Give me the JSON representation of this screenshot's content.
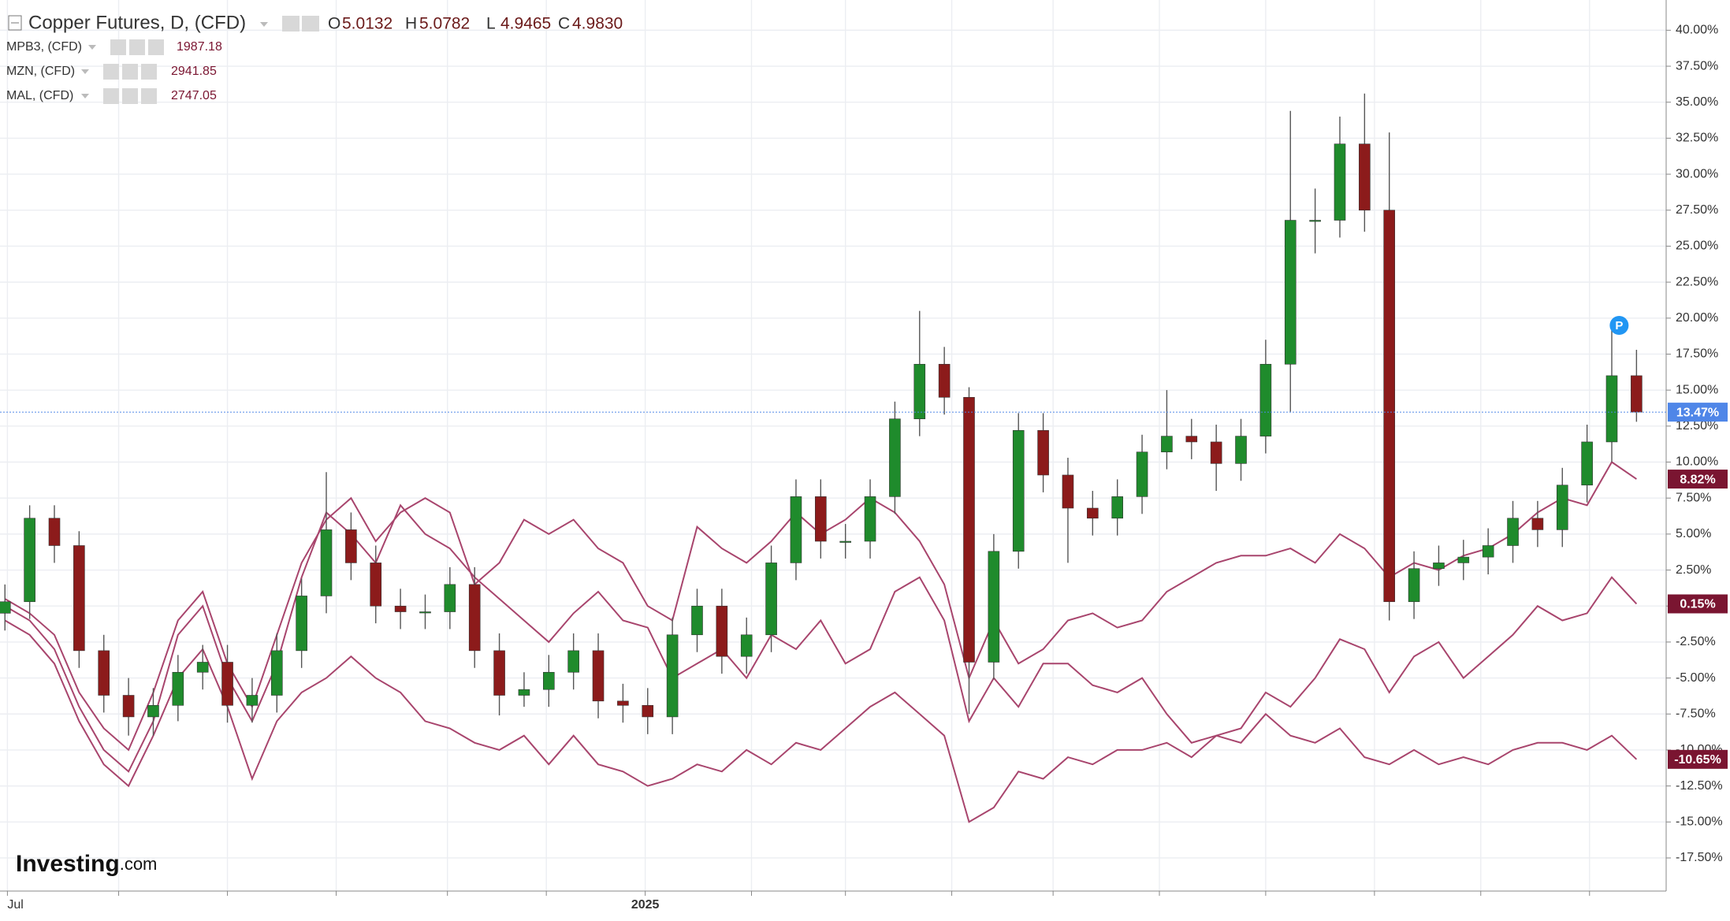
{
  "chart_data": {
    "type": "candlestick",
    "title": "Copper Futures, D, (CFD)",
    "header_values": [
      {
        "label": "O",
        "value": "5.0132"
      },
      {
        "label": "H",
        "value": "5.0782"
      },
      {
        "label": "L",
        "value": "4.9465"
      },
      {
        "label": "C",
        "value": "4.9830"
      }
    ],
    "x": [
      0,
      1,
      2,
      3,
      4,
      5,
      6,
      7,
      8,
      9,
      10,
      11,
      12,
      13,
      14,
      15,
      16,
      17,
      18,
      19,
      20,
      21,
      22,
      23,
      24,
      25,
      26,
      27,
      28,
      29,
      30,
      31,
      32,
      33,
      34,
      35,
      36,
      37,
      38,
      39,
      40,
      41,
      42,
      43,
      44,
      45,
      46,
      47,
      48,
      49,
      50,
      51,
      52,
      53,
      54,
      55,
      56,
      57,
      58,
      59,
      60,
      61,
      62,
      63,
      64,
      65,
      66
    ],
    "xlim": [
      -0.2,
      67.2
    ],
    "xticks": [
      {
        "value": 0.1,
        "label": "Jul"
      },
      {
        "value": 25.9,
        "label": "2025"
      }
    ],
    "xgrid": [
      0.1,
      4.6,
      9.0,
      13.4,
      17.9,
      21.9,
      25.9,
      30.2,
      34.0,
      38.3,
      42.4,
      46.7,
      51.0,
      55.4,
      59.7,
      64.1
    ],
    "ylim": [
      -19.8,
      42.1
    ],
    "yticks": [
      {
        "value": 40,
        "label": "40.00%"
      },
      {
        "value": 37.5,
        "label": "37.50%"
      },
      {
        "value": 35,
        "label": "35.00%"
      },
      {
        "value": 32.5,
        "label": "32.50%"
      },
      {
        "value": 30,
        "label": "30.00%"
      },
      {
        "value": 27.5,
        "label": "27.50%"
      },
      {
        "value": 25,
        "label": "25.00%"
      },
      {
        "value": 22.5,
        "label": "22.50%"
      },
      {
        "value": 20,
        "label": "20.00%"
      },
      {
        "value": 17.5,
        "label": "17.50%"
      },
      {
        "value": 15,
        "label": "15.00%"
      },
      {
        "value": 12.5,
        "label": "12.50%"
      },
      {
        "value": 10,
        "label": "10.00%"
      },
      {
        "value": 7.5,
        "label": "7.50%"
      },
      {
        "value": 5,
        "label": "5.00%"
      },
      {
        "value": 2.5,
        "label": "2.50%"
      },
      {
        "value": 0,
        "label": "0.00%"
      },
      {
        "value": -2.5,
        "label": "-2.50%"
      },
      {
        "value": -5,
        "label": "-5.00%"
      },
      {
        "value": -7.5,
        "label": "-7.50%"
      },
      {
        "value": -10,
        "label": "-10.00%"
      },
      {
        "value": -12.5,
        "label": "-12.50%"
      },
      {
        "value": -15,
        "label": "-15.00%"
      },
      {
        "value": -17.5,
        "label": "-17.50%"
      }
    ],
    "grid": true,
    "ohlc": {
      "up_color": "#1f8b2c",
      "down_color": "#8c1b1b",
      "last_value": 13.47,
      "last_label": "13.47%",
      "last_color": "#4f86e8",
      "open": [
        -0.5,
        0.3,
        6.1,
        4.2,
        -3.1,
        -6.2,
        -7.7,
        -6.9,
        -4.6,
        -3.9,
        -6.9,
        -6.2,
        -3.1,
        0.7,
        5.3,
        3.0,
        0,
        -0.4,
        -0.4,
        1.5,
        -3.1,
        -6.2,
        -5.8,
        -4.6,
        -3.1,
        -6.6,
        -6.9,
        -7.7,
        -2.0,
        0,
        -3.5,
        -2.0,
        3.0,
        7.6,
        4.5,
        4.5,
        7.6,
        13.0,
        16.8,
        14.5,
        -3.9,
        3.8,
        12.2,
        9.1,
        6.8,
        6.1,
        7.6,
        10.7,
        11.8,
        11.4,
        9.9,
        11.8,
        16.8,
        26.8,
        26.8,
        32.1,
        27.5,
        0.3,
        2.6,
        3.0,
        3.4,
        4.2,
        6.1,
        5.3,
        8.4,
        11.4,
        16.0
      ],
      "high": [
        1.5,
        7.0,
        7.0,
        5.2,
        -2,
        -5,
        -5.7,
        -3.4,
        -2.7,
        -2.7,
        -5,
        -1.9,
        1.9,
        9.3,
        6.5,
        4.2,
        1.2,
        0.8,
        2.7,
        2.7,
        -1.9,
        -4.6,
        -3.4,
        -1.9,
        -1.9,
        -5.4,
        -5.7,
        -0.8,
        1.2,
        1.2,
        -0.8,
        4.2,
        8.8,
        8.8,
        5.7,
        8.8,
        14.2,
        20.5,
        18.0,
        15.2,
        5.0,
        13.4,
        13.4,
        10.3,
        8.0,
        8.8,
        11.9,
        15.0,
        13.0,
        12.6,
        13.0,
        18.5,
        34.4,
        29,
        34,
        35.6,
        32.9,
        3.8,
        4.2,
        4.6,
        5.4,
        7.3,
        7.3,
        9.6,
        12.6,
        19.8,
        17.8
      ],
      "low": [
        -1.7,
        -0.9,
        3.0,
        -4.3,
        -7.4,
        -9,
        -9,
        -8,
        -5.8,
        -8.1,
        -8.1,
        -7.4,
        -4.3,
        -0.5,
        1.8,
        -1.2,
        -1.6,
        -1.6,
        -1.6,
        -4.3,
        -7.6,
        -7.0,
        -7.0,
        -5.8,
        -7.8,
        -8.1,
        -8.9,
        -8.9,
        -3.2,
        -4.7,
        -4.7,
        -3.2,
        1.8,
        3.3,
        3.3,
        3.3,
        6.4,
        11.8,
        13.3,
        -7.5,
        -5.1,
        2.6,
        7.9,
        3.0,
        4.9,
        4.9,
        6.4,
        9.5,
        10.2,
        8.0,
        8.7,
        10.6,
        13.5,
        24.5,
        25.6,
        26,
        -1.0,
        -0.9,
        1.4,
        1.8,
        2.2,
        3.0,
        4.1,
        4.1,
        7.2,
        10.0,
        12.8
      ],
      "close": [
        0.3,
        6.1,
        4.2,
        -3.1,
        -6.2,
        -7.7,
        -6.9,
        -4.6,
        -3.9,
        -6.9,
        -6.2,
        -3.1,
        0.7,
        5.3,
        3.0,
        0,
        -0.4,
        -0.4,
        1.5,
        -3.1,
        -6.2,
        -5.8,
        -4.6,
        -3.1,
        -6.6,
        -6.9,
        -7.7,
        -2.0,
        0,
        -3.5,
        -2.0,
        3.0,
        7.6,
        4.5,
        4.5,
        7.6,
        13.0,
        16.8,
        14.5,
        -3.9,
        3.8,
        12.2,
        9.1,
        6.8,
        6.1,
        7.6,
        10.7,
        11.8,
        11.4,
        9.9,
        11.8,
        16.8,
        26.8,
        26.8,
        32.1,
        27.5,
        0.3,
        2.6,
        3.0,
        3.4,
        4.2,
        6.1,
        5.3,
        8.4,
        11.4,
        16.0,
        13.47
      ]
    },
    "series": [
      {
        "name": "MPB3, (CFD)",
        "price": "1987.18",
        "color": "#a8456d",
        "label_color": "#7a1531",
        "last_label": "-10.65%",
        "values": [
          -1,
          -2,
          -4,
          -8,
          -11,
          -12.5,
          -9,
          -5,
          -3,
          -7,
          -12,
          -8,
          -6,
          -5,
          -3.5,
          -5,
          -6,
          -8,
          -8.5,
          -9.5,
          -10,
          -9,
          -11,
          -9,
          -11,
          -11.5,
          -12.5,
          -12,
          -11,
          -11.5,
          -10,
          -11,
          -9.5,
          -10,
          -8.5,
          -7,
          -6,
          -7.5,
          -9,
          -15,
          -14,
          -11.5,
          -12,
          -10.5,
          -11,
          -10,
          -10,
          -9.5,
          -10.5,
          -9,
          -9.5,
          -7.5,
          -9,
          -9.5,
          -8.5,
          -10.5,
          -11,
          -10,
          -11,
          -10.5,
          -11,
          -10,
          -9.5,
          -9.5,
          -10,
          -9,
          -10.65
        ]
      },
      {
        "name": "MZN, (CFD)",
        "price": "2941.85",
        "color": "#a8456d",
        "label_color": "#7a1531",
        "last_label": "0.15%",
        "values": [
          0,
          -1,
          -3,
          -7,
          -10,
          -11.5,
          -8,
          -2,
          0,
          -5,
          -8,
          -4,
          2,
          6.5,
          5,
          3,
          7,
          5,
          4,
          2,
          0.5,
          -1,
          -2.5,
          -0.5,
          1,
          -1,
          -1.5,
          -5,
          -4,
          -3,
          -5,
          -2,
          -3,
          -1,
          -4,
          -3,
          1,
          2,
          -1,
          -8,
          -5,
          -7,
          -4,
          -4,
          -5.5,
          -6,
          -5,
          -7.5,
          -9.5,
          -9,
          -8.5,
          -6,
          -7,
          -5,
          -2.3,
          -3,
          -6,
          -3.5,
          -2.5,
          -5,
          -3.5,
          -2,
          0,
          -1,
          -0.5,
          2,
          0.15
        ]
      },
      {
        "name": "MAL, (CFD)",
        "price": "2747.05",
        "color": "#a8456d",
        "label_color": "#7a1531",
        "last_label": "8.82%",
        "values": [
          0.5,
          -0.5,
          -2,
          -6,
          -8.5,
          -10,
          -6,
          -1,
          1,
          -4,
          -7,
          -2,
          3,
          6,
          7.5,
          4.5,
          6.5,
          7.5,
          6.5,
          1.5,
          3,
          6,
          5,
          6,
          4,
          3,
          0,
          -1,
          5.5,
          4,
          3,
          4.5,
          6.5,
          5,
          6,
          7.5,
          6.5,
          4.5,
          1.5,
          -5,
          -1,
          -4,
          -3,
          -1,
          -0.5,
          -1.5,
          -1,
          1,
          2,
          3,
          3.5,
          3.5,
          4,
          3,
          5,
          4,
          2,
          3,
          2.5,
          3.5,
          4,
          5,
          6.5,
          7.5,
          7,
          10,
          8.82
        ]
      }
    ],
    "marker": "P",
    "brand": "Investing",
    "brand_suffix": ".com"
  }
}
